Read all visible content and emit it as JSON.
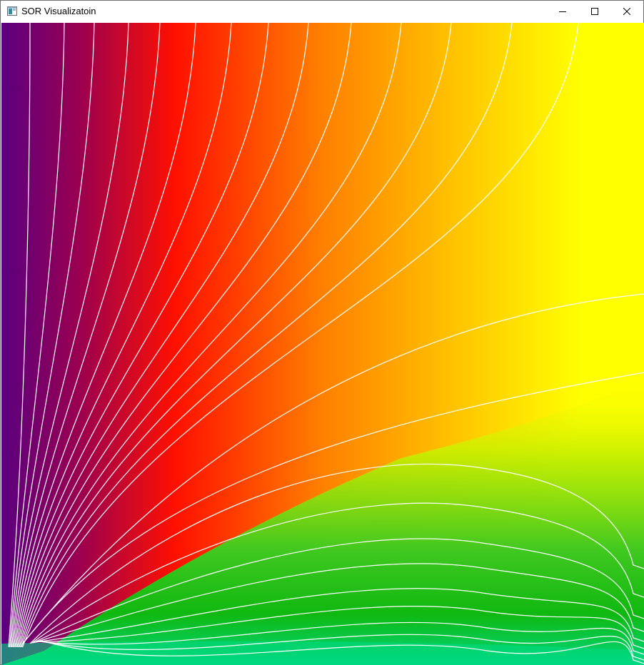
{
  "window": {
    "title": "SOR Visualizatoin",
    "icon": "app-window-icon"
  },
  "caption_buttons": {
    "minimize_icon": "minimize-icon",
    "maximize_icon": "maximize-icon",
    "close_icon": "close-icon"
  },
  "visualization": {
    "colormap": [
      "#5a0080",
      "#ff1000",
      "#ff8000",
      "#ffff00",
      "#10b810",
      "#00d880"
    ],
    "contour_color": "#ffffff"
  }
}
